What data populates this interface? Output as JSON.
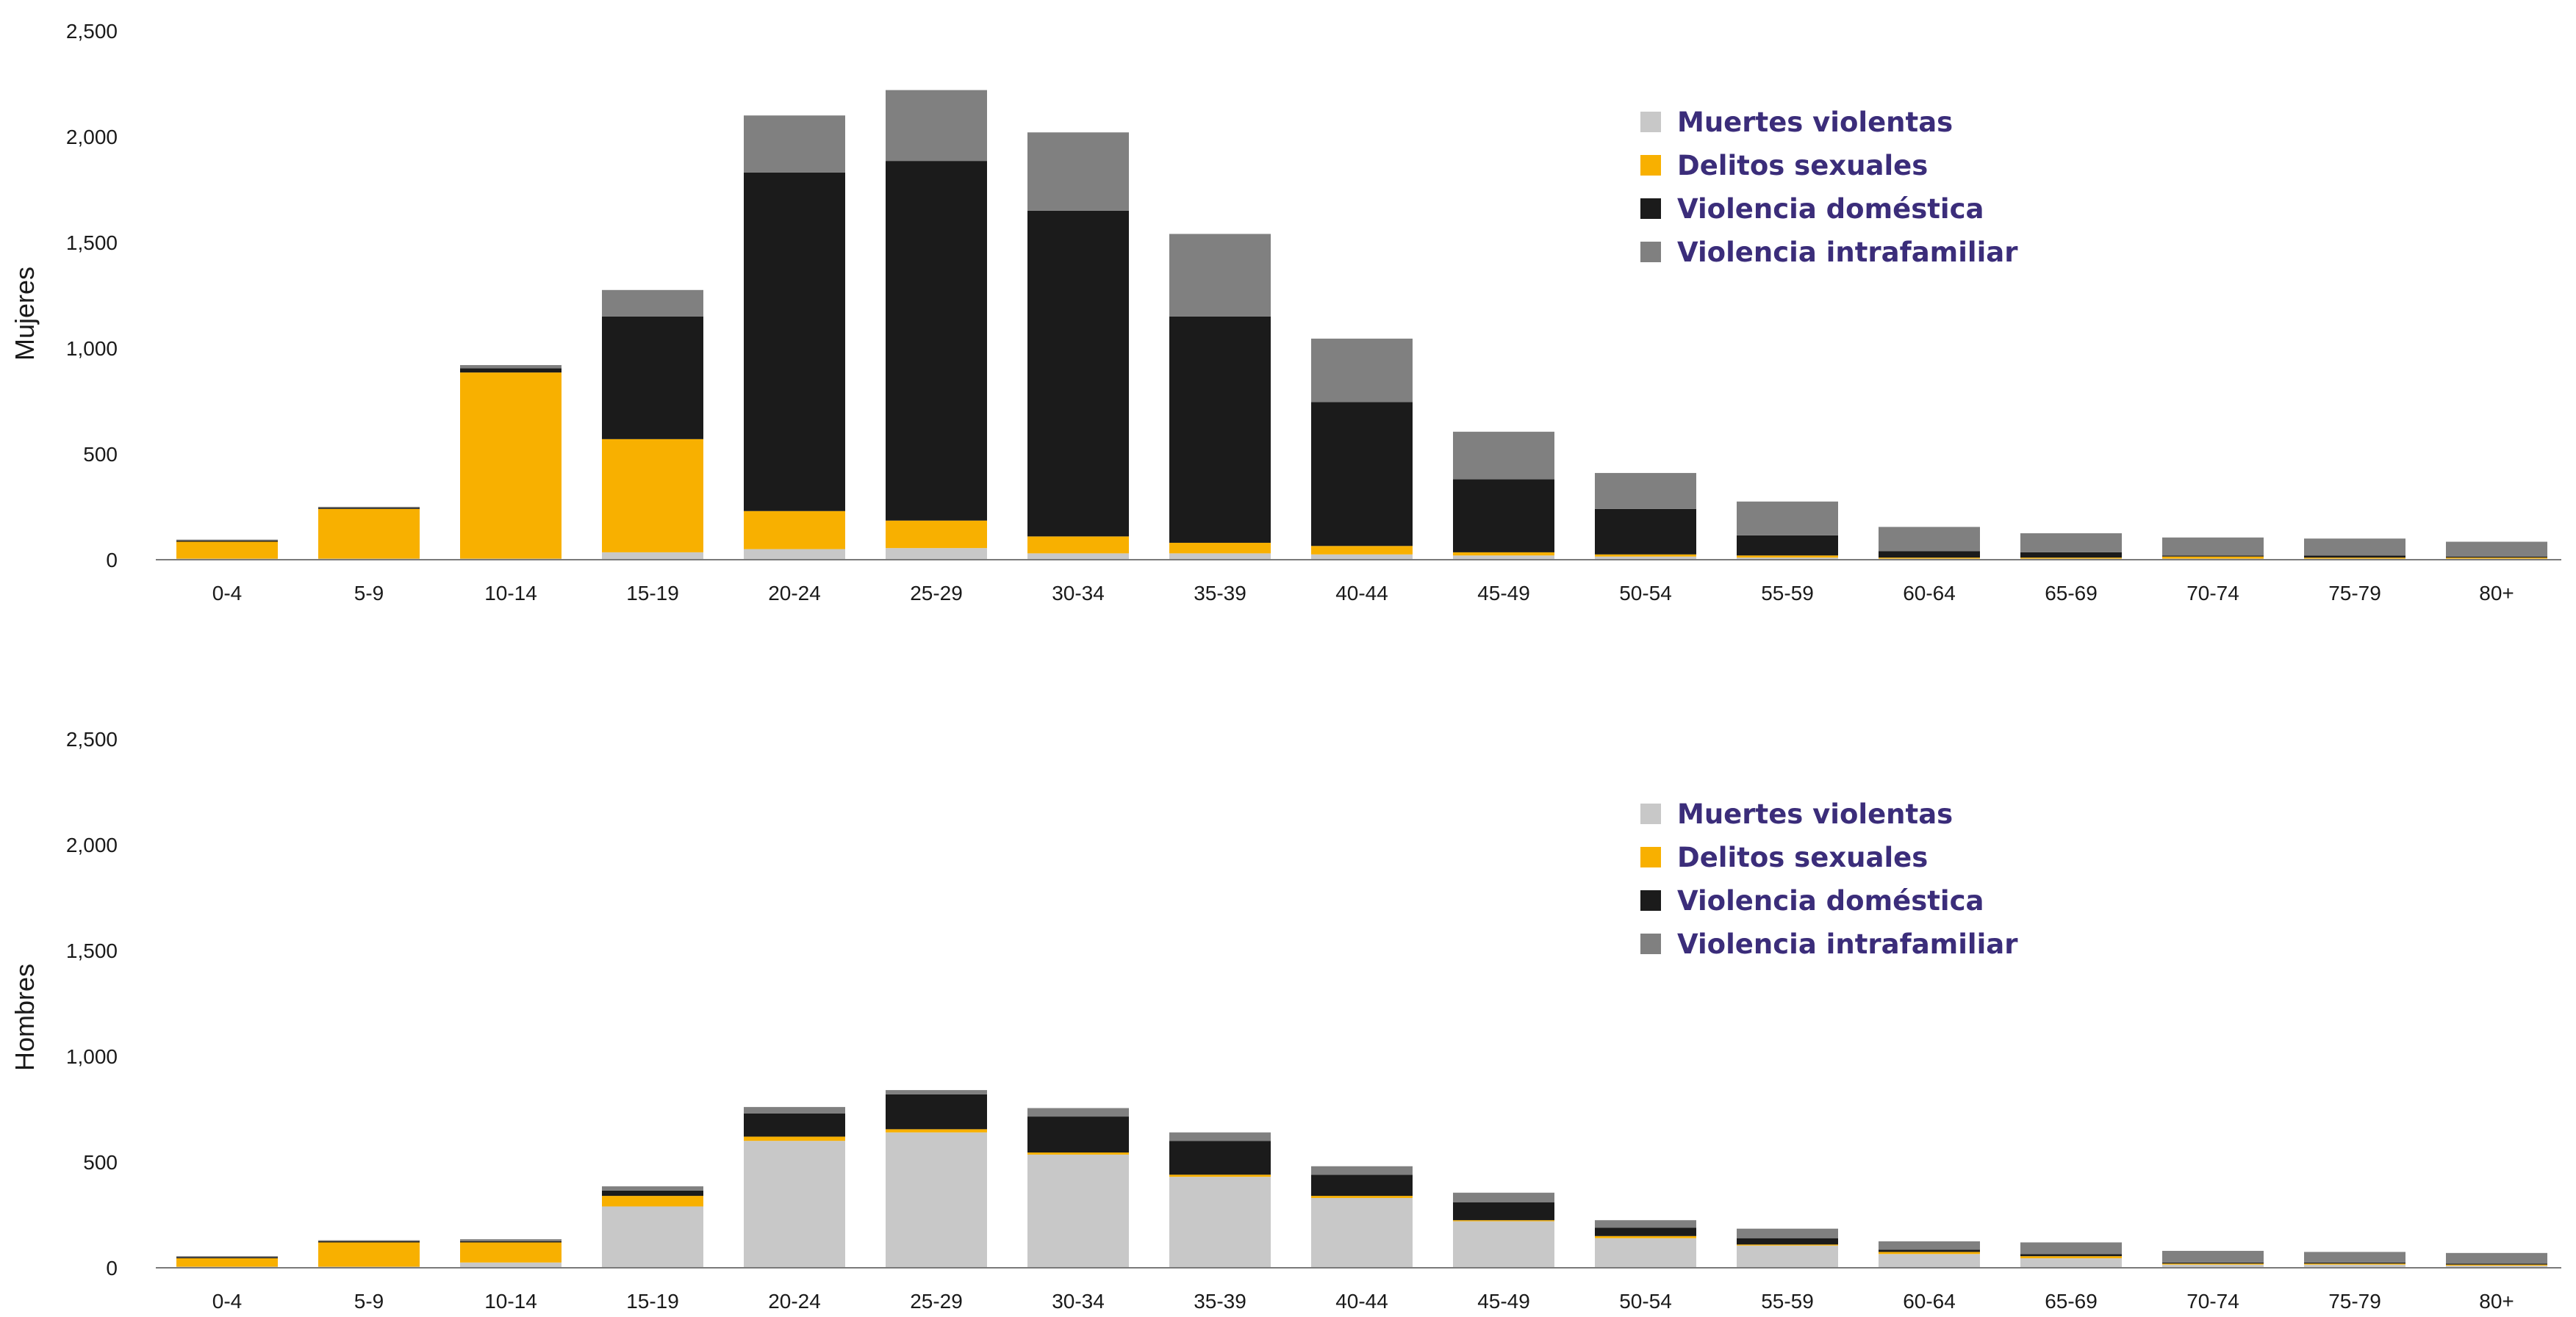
{
  "colors": {
    "Muertes violentas": "#c8c8c8",
    "Delitos sexuales": "#f8b000",
    "Violencia doméstica": "#1b1b1b",
    "Violencia intrafamiliar": "#808080",
    "axis": "#7a7a7a"
  },
  "chart_data": [
    {
      "type": "bar",
      "stacked": true,
      "ylabel": "Mujeres",
      "xlabel": "",
      "ylim": [
        0,
        2500
      ],
      "yticks": [
        0,
        500,
        1000,
        1500,
        2000,
        2500
      ],
      "ytick_labels": [
        "0",
        "500",
        "1,000",
        "1,500",
        "2,000",
        "2,500"
      ],
      "grid": false,
      "legend_position": "top-right",
      "categories": [
        "0-4",
        "5-9",
        "10-14",
        "15-19",
        "20-24",
        "25-29",
        "30-34",
        "35-39",
        "40-44",
        "45-49",
        "50-54",
        "55-59",
        "60-64",
        "65-69",
        "70-74",
        "75-79",
        "80+"
      ],
      "series": [
        {
          "name": "Muertes violentas",
          "values": [
            5,
            5,
            5,
            35,
            50,
            55,
            30,
            30,
            25,
            20,
            15,
            10,
            5,
            5,
            5,
            5,
            5
          ]
        },
        {
          "name": "Delitos sexuales",
          "values": [
            80,
            235,
            880,
            535,
            180,
            130,
            80,
            50,
            40,
            15,
            10,
            10,
            5,
            5,
            10,
            5,
            5
          ]
        },
        {
          "name": "Violencia doméstica",
          "values": [
            5,
            5,
            20,
            580,
            1600,
            1700,
            1540,
            1070,
            680,
            345,
            215,
            95,
            30,
            25,
            5,
            10,
            5
          ]
        },
        {
          "name": "Violencia intrafamiliar",
          "values": [
            5,
            5,
            15,
            125,
            270,
            335,
            370,
            390,
            300,
            225,
            170,
            160,
            115,
            90,
            85,
            80,
            70
          ]
        }
      ]
    },
    {
      "type": "bar",
      "stacked": true,
      "ylabel": "Hombres",
      "xlabel": "",
      "ylim": [
        0,
        2500
      ],
      "yticks": [
        0,
        500,
        1000,
        1500,
        2000,
        2500
      ],
      "ytick_labels": [
        "0",
        "500",
        "1,000",
        "1,500",
        "2,000",
        "2,500"
      ],
      "grid": false,
      "legend_position": "top-right",
      "categories": [
        "0-4",
        "5-9",
        "10-14",
        "15-19",
        "20-24",
        "25-29",
        "30-34",
        "35-39",
        "40-44",
        "45-49",
        "50-54",
        "55-59",
        "60-64",
        "65-69",
        "70-74",
        "75-79",
        "80+"
      ],
      "series": [
        {
          "name": "Muertes violentas",
          "values": [
            5,
            5,
            25,
            290,
            600,
            640,
            535,
            430,
            330,
            220,
            140,
            105,
            65,
            45,
            15,
            15,
            10
          ]
        },
        {
          "name": "Delitos sexuales",
          "values": [
            40,
            115,
            95,
            50,
            20,
            15,
            10,
            10,
            10,
            5,
            10,
            5,
            10,
            10,
            5,
            5,
            5
          ]
        },
        {
          "name": "Violencia doméstica",
          "values": [
            5,
            5,
            5,
            25,
            110,
            165,
            170,
            160,
            100,
            85,
            40,
            30,
            10,
            10,
            5,
            5,
            5
          ]
        },
        {
          "name": "Violencia intrafamiliar",
          "values": [
            5,
            5,
            10,
            20,
            30,
            20,
            40,
            40,
            40,
            45,
            35,
            45,
            40,
            55,
            55,
            50,
            50
          ]
        }
      ]
    }
  ]
}
